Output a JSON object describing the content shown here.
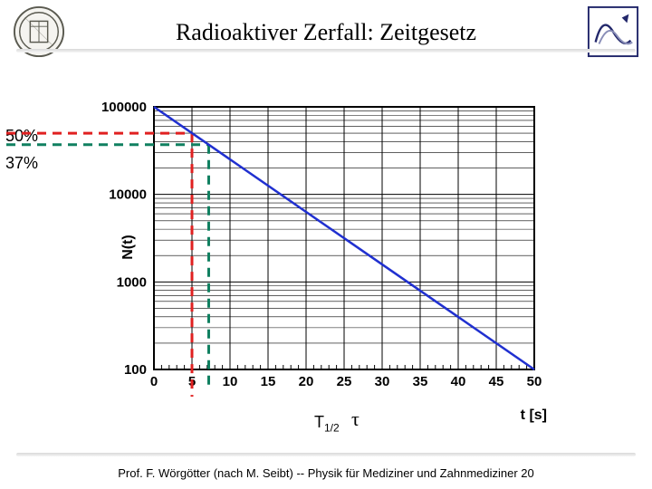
{
  "title": "Radioaktiver Zerfall: Zeitgesetz",
  "side_labels": {
    "p50": "50%",
    "p37": "37%"
  },
  "chart": {
    "type": "line",
    "xlim": [
      0,
      50
    ],
    "ylim": [
      100,
      100000
    ],
    "yscale": "log",
    "xticks": [
      0,
      5,
      10,
      15,
      20,
      25,
      30,
      35,
      40,
      45,
      50
    ],
    "yticks": [
      100,
      1000,
      10000,
      100000
    ],
    "ytick_labels": [
      "100",
      "1000",
      "10000",
      "100000"
    ],
    "ylabel": "N(t)",
    "xlabel": "t [s]",
    "line": {
      "x1": 0,
      "y1": 100000,
      "x2": 50,
      "y2": 100,
      "color": "#2030d0",
      "width": 2.5
    },
    "grid_color": "#000000",
    "minor_grid_color": "#000000",
    "background_color": "#ffffff",
    "t_half": 5,
    "tau": 7.2,
    "dash_50_color": "#e02020",
    "dash_37_color": "#108060"
  },
  "annot": {
    "t_half": "T",
    "t_half_sub": "1/2",
    "tau": "τ"
  },
  "footer": "Prof. F. Wörgötter (nach M. Seibt) -- Physik für Mediziner und Zahnmediziner  20"
}
